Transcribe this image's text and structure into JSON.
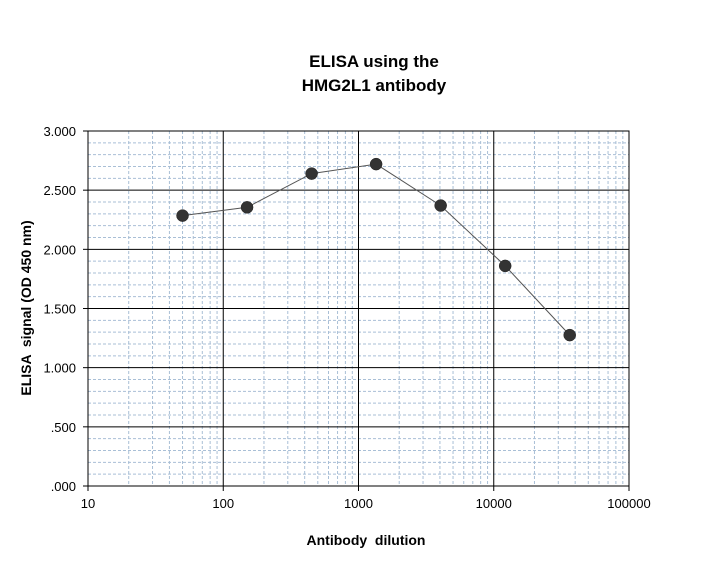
{
  "chart_data": {
    "type": "scatter",
    "title_lines": [
      "ELISA using the",
      "HMG2L1 antibody"
    ],
    "xlabel": "Antibody  dilution",
    "ylabel": "ELISA  signal (OD 450 nm)",
    "x_scale": "log",
    "xlim": [
      10,
      100000
    ],
    "ylim": [
      0,
      3.0
    ],
    "x_ticks": [
      10,
      100,
      1000,
      10000,
      100000
    ],
    "x_tick_labels": [
      "10",
      "100",
      "1000",
      "10000",
      "100000"
    ],
    "y_ticks": [
      0,
      0.5,
      1.0,
      1.5,
      2.0,
      2.5,
      3.0
    ],
    "y_tick_labels": [
      ".000",
      ".500",
      "1.000",
      "1.500",
      "2.000",
      "2.500",
      "3.000"
    ],
    "grid": "major and minor",
    "connected": true,
    "series": [
      {
        "x": [
          50,
          150,
          450,
          1350,
          4050,
          12150,
          36450
        ],
        "y": [
          2.285,
          2.355,
          2.64,
          2.72,
          2.37,
          1.86,
          1.275
        ]
      }
    ],
    "colors": {
      "major_grid": "#000000",
      "minor_grid": "#a9bfd6",
      "marker": "#333333",
      "line": "#555555"
    }
  }
}
